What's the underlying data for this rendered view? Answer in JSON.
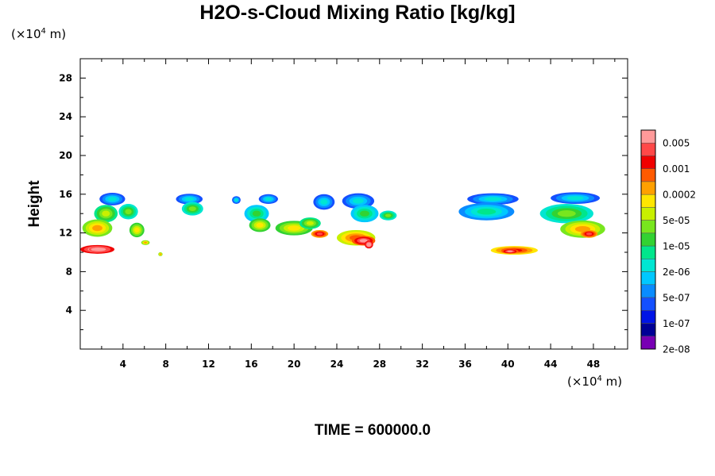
{
  "title": "H2O-s-Cloud Mixing Ratio [kg/kg]",
  "time_label": "TIME = 600000.0",
  "y_unit": {
    "prefix": "(×10",
    "exp": "4",
    "suffix": " m)"
  },
  "x_unit": {
    "prefix": "(×10",
    "exp": "4",
    "suffix": " m)"
  },
  "chart_data": {
    "type": "heatmap",
    "title": "H2O-s-Cloud Mixing Ratio [kg/kg]",
    "xlabel": "",
    "ylabel": "Height",
    "xlim": [
      0,
      51.2
    ],
    "ylim": [
      0,
      30
    ],
    "x_ticks": [
      4,
      8,
      12,
      16,
      20,
      24,
      28,
      32,
      36,
      40,
      44,
      48
    ],
    "y_ticks": [
      4,
      8,
      12,
      16,
      20,
      24,
      28
    ],
    "x_units": "×10^4 m",
    "y_units": "×10^4 m",
    "colorbar": {
      "labels": [
        "0.005",
        "0.001",
        "0.0002",
        "5e-05",
        "1e-05",
        "2e-06",
        "5e-07",
        "1e-07",
        "2e-08"
      ],
      "colors": [
        "#ff9a9a",
        "#ff4848",
        "#f00000",
        "#ff5a00",
        "#ffa000",
        "#ffe600",
        "#c8f000",
        "#78e61e",
        "#32d232",
        "#00e68c",
        "#00e6d2",
        "#00c8ff",
        "#0a8cff",
        "#1450ff",
        "#0014e6",
        "#000096",
        "#7800b4"
      ]
    },
    "grid": false,
    "clouds": [
      {
        "x": 3.0,
        "y": 15.5,
        "w": 2.4,
        "h": 1.3,
        "level": 13
      },
      {
        "x": 2.4,
        "y": 14.0,
        "w": 2.2,
        "h": 1.8,
        "level": 9
      },
      {
        "x": 1.6,
        "y": 12.5,
        "w": 2.8,
        "h": 1.8,
        "level": 7
      },
      {
        "x": 4.5,
        "y": 14.2,
        "w": 1.8,
        "h": 1.6,
        "level": 10
      },
      {
        "x": 5.3,
        "y": 12.3,
        "w": 1.4,
        "h": 1.5,
        "level": 8
      },
      {
        "x": 1.6,
        "y": 10.3,
        "w": 3.2,
        "h": 0.9,
        "level": 2
      },
      {
        "x": 1.7,
        "y": 10.3,
        "w": 1.8,
        "h": 0.5,
        "level": 1
      },
      {
        "x": 6.1,
        "y": 11.0,
        "w": 0.8,
        "h": 0.5,
        "level": 7
      },
      {
        "x": 7.5,
        "y": 9.8,
        "w": 0.4,
        "h": 0.4,
        "level": 7
      },
      {
        "x": 10.2,
        "y": 15.5,
        "w": 2.5,
        "h": 1.1,
        "level": 13
      },
      {
        "x": 10.5,
        "y": 14.5,
        "w": 2.0,
        "h": 1.4,
        "level": 10
      },
      {
        "x": 14.6,
        "y": 15.4,
        "w": 0.8,
        "h": 0.8,
        "level": 13
      },
      {
        "x": 17.6,
        "y": 15.5,
        "w": 1.8,
        "h": 1.0,
        "level": 13
      },
      {
        "x": 16.5,
        "y": 14.0,
        "w": 2.3,
        "h": 1.8,
        "level": 11
      },
      {
        "x": 16.8,
        "y": 12.8,
        "w": 2.0,
        "h": 1.4,
        "level": 8
      },
      {
        "x": 20.0,
        "y": 12.5,
        "w": 3.5,
        "h": 1.5,
        "level": 8
      },
      {
        "x": 21.5,
        "y": 13.0,
        "w": 2.0,
        "h": 1.2,
        "level": 9
      },
      {
        "x": 22.8,
        "y": 15.2,
        "w": 2.0,
        "h": 1.6,
        "level": 13
      },
      {
        "x": 22.4,
        "y": 11.9,
        "w": 1.6,
        "h": 0.8,
        "level": 4
      },
      {
        "x": 26.0,
        "y": 15.3,
        "w": 3.0,
        "h": 1.6,
        "level": 13
      },
      {
        "x": 26.6,
        "y": 14.0,
        "w": 2.6,
        "h": 1.8,
        "level": 11
      },
      {
        "x": 28.8,
        "y": 13.8,
        "w": 1.6,
        "h": 1.0,
        "level": 10
      },
      {
        "x": 25.8,
        "y": 11.5,
        "w": 3.6,
        "h": 1.6,
        "level": 6
      },
      {
        "x": 26.5,
        "y": 11.2,
        "w": 2.2,
        "h": 1.0,
        "level": 3
      },
      {
        "x": 27.0,
        "y": 10.8,
        "w": 0.8,
        "h": 0.8,
        "level": 2
      },
      {
        "x": 38.6,
        "y": 15.5,
        "w": 4.8,
        "h": 1.2,
        "level": 13
      },
      {
        "x": 38.0,
        "y": 14.2,
        "w": 5.2,
        "h": 1.8,
        "level": 12
      },
      {
        "x": 40.6,
        "y": 10.2,
        "w": 4.4,
        "h": 0.9,
        "level": 5
      },
      {
        "x": 40.2,
        "y": 10.1,
        "w": 1.6,
        "h": 0.5,
        "level": 3
      },
      {
        "x": 46.3,
        "y": 15.6,
        "w": 4.6,
        "h": 1.2,
        "level": 13
      },
      {
        "x": 45.5,
        "y": 14.0,
        "w": 5.0,
        "h": 2.0,
        "level": 10
      },
      {
        "x": 47.0,
        "y": 12.4,
        "w": 4.2,
        "h": 1.8,
        "level": 7
      },
      {
        "x": 47.6,
        "y": 11.9,
        "w": 1.6,
        "h": 0.8,
        "level": 4
      }
    ]
  }
}
